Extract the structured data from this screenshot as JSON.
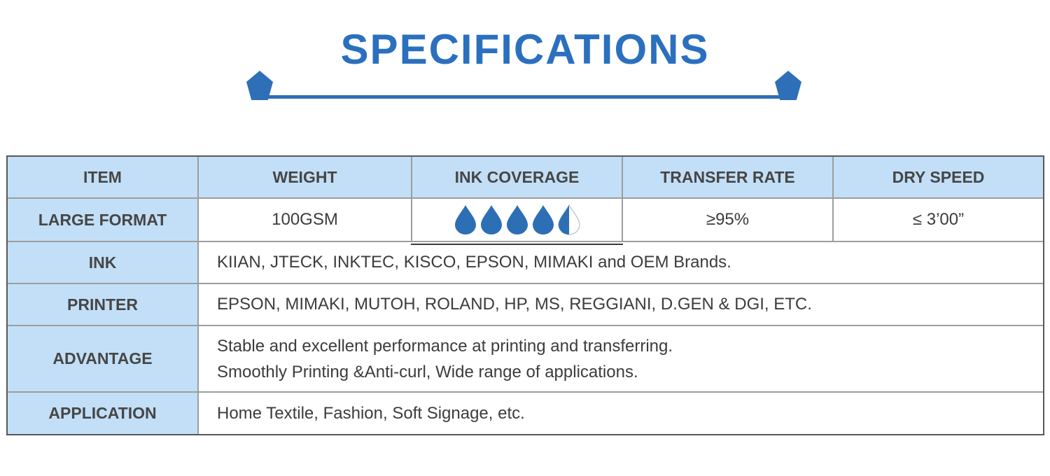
{
  "title": "SPECIFICATIONS",
  "colors": {
    "accent_blue": "#2B70BE",
    "drop_blue": "#2D6FB5",
    "drop_outline": "#C2CBD6",
    "header_bg": "#C3DFF7",
    "border_outer": "#58585A",
    "border_inner": "#9D9D9D"
  },
  "divider": {
    "left_icon": "pentagon-icon",
    "right_icon": "pentagon-icon"
  },
  "table": {
    "headers": [
      "ITEM",
      "WEIGHT",
      "INK COVERAGE",
      "TRANSFER RATE",
      "DRY SPEED"
    ],
    "large_format": {
      "label": "LARGE FORMAT",
      "weight": "100GSM",
      "ink_coverage": {
        "icon": "ink-drop-icon",
        "full": 4,
        "half": 1,
        "max": 5
      },
      "transfer_rate": "≥95%",
      "dry_speed": "≤ 3’00”"
    },
    "ink": {
      "label": "INK",
      "value": "KIIAN, JTECK, INKTEC, KISCO, EPSON, MIMAKI and OEM Brands."
    },
    "printer": {
      "label": "PRINTER",
      "value": "EPSON, MIMAKI, MUTOH, ROLAND, HP, MS, REGGIANI, D.GEN & DGI, ETC."
    },
    "advantage": {
      "label": "ADVANTAGE",
      "lines": [
        "Stable and excellent performance at printing and transferring.",
        "Smoothly Printing &Anti-curl, Wide range of applications."
      ]
    },
    "application": {
      "label": "APPLICATION",
      "value": "Home Textile, Fashion, Soft Signage, etc."
    }
  }
}
